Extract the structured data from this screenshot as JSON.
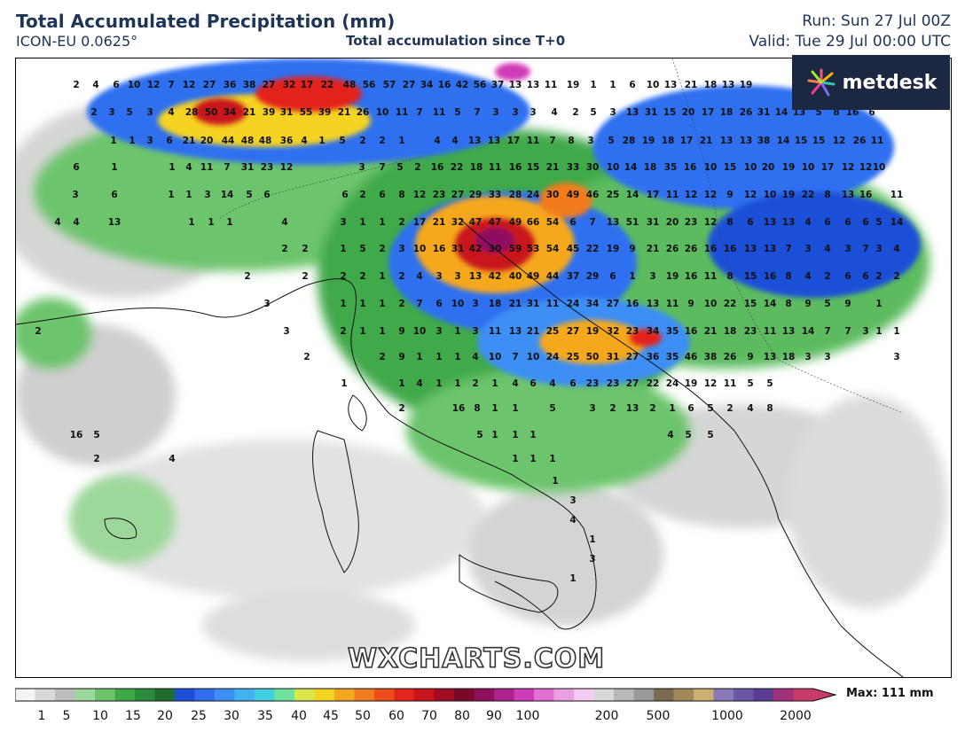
{
  "header": {
    "title": "Total Accumulated Precipitation (mm)",
    "model": "ICON-EU 0.0625°",
    "subtitle": "Total accumulation since T+0",
    "run": "Run: Sun 27 Jul 00Z",
    "valid": "Valid: Tue 29 Jul 00:00 UTC"
  },
  "logo": {
    "text": "metdesk",
    "icon": "metdesk-burst-icon"
  },
  "watermark": "WXCHARTS.COM",
  "legend": {
    "ticks": [
      "1",
      "5",
      "10",
      "15",
      "20",
      "25",
      "30",
      "35",
      "40",
      "45",
      "50",
      "60",
      "70",
      "80",
      "90",
      "100",
      "200",
      "500",
      "1000",
      "2000"
    ],
    "max_label": "Max: 111 mm",
    "colors": [
      "#f4f4f4",
      "#d9d9d9",
      "#bdbdbd",
      "#9dd89a",
      "#6cc46c",
      "#3fa94a",
      "#2a8c3b",
      "#1f6e2f",
      "#1d4fd8",
      "#2f6ff0",
      "#3c8ff5",
      "#42b3f2",
      "#3fd1e0",
      "#6fe2a0",
      "#d6e84a",
      "#f5d323",
      "#f5a81f",
      "#f27c1e",
      "#ee4d1a",
      "#e3241a",
      "#c8141c",
      "#a20c22",
      "#7a0a2a",
      "#8e1160",
      "#b0218e",
      "#d03bb7",
      "#e070d3",
      "#ea9ee3",
      "#f2c9ef",
      "#d8d8d8",
      "#b8b8b8",
      "#9a9a9a",
      "#7a6a50",
      "#a0885a",
      "#c9b070",
      "#8878b8",
      "#6a58a6",
      "#5a3e96",
      "#a0327a",
      "#c83a6a"
    ]
  },
  "map": {
    "region": "Central Mediterranean / Italy / Balkans",
    "values": [
      "2",
      "4",
      "6",
      "10",
      "12",
      "7",
      "12",
      "27",
      "36",
      "38",
      "27",
      "32",
      "17",
      "22",
      "48",
      "56",
      "57",
      "27",
      "34",
      "16",
      "42",
      "56",
      "37",
      "13",
      "13",
      "11",
      "19",
      "1",
      "1",
      "6",
      "10",
      "13",
      "21",
      "18",
      "13",
      "19",
      "2",
      "3",
      "5",
      "3",
      "4",
      "28",
      "50",
      "34",
      "21",
      "39",
      "31",
      "55",
      "39",
      "21",
      "26",
      "10",
      "11",
      "7",
      "11",
      "5",
      "7",
      "3",
      "3",
      "3",
      "4",
      "2",
      "5",
      "3",
      "13",
      "31",
      "15",
      "20",
      "17",
      "18",
      "26",
      "31",
      "14",
      "13",
      "5",
      "8",
      "16",
      "6",
      "1",
      "1",
      "3",
      "6",
      "21",
      "20",
      "44",
      "48",
      "48",
      "36",
      "4",
      "1",
      "5",
      "2",
      "2",
      "1",
      "4",
      "4",
      "13",
      "13",
      "17",
      "11",
      "7",
      "8",
      "3",
      "5",
      "28",
      "19",
      "18",
      "17",
      "21",
      "13",
      "13",
      "38",
      "14",
      "15",
      "15",
      "12",
      "26",
      "11",
      "6",
      "1",
      "1",
      "4",
      "11",
      "7",
      "31",
      "23",
      "12",
      "3",
      "7",
      "5",
      "2",
      "16",
      "22",
      "18",
      "11",
      "16",
      "15",
      "21",
      "33",
      "30",
      "10",
      "14",
      "18",
      "35",
      "16",
      "10",
      "15",
      "10",
      "20",
      "19",
      "10",
      "17",
      "12",
      "12",
      "10",
      "3",
      "6",
      "1",
      "1",
      "3",
      "14",
      "5",
      "6",
      "6",
      "2",
      "6",
      "8",
      "12",
      "23",
      "27",
      "29",
      "33",
      "28",
      "24",
      "30",
      "49",
      "46",
      "25",
      "14",
      "17",
      "11",
      "12",
      "12",
      "9",
      "12",
      "10",
      "19",
      "22",
      "8",
      "13",
      "16",
      "11",
      "4",
      "4",
      "13",
      "1",
      "1",
      "1",
      "4",
      "3",
      "1",
      "1",
      "2",
      "17",
      "21",
      "32",
      "47",
      "47",
      "49",
      "66",
      "54",
      "6",
      "7",
      "13",
      "51",
      "31",
      "20",
      "23",
      "12",
      "8",
      "6",
      "13",
      "13",
      "4",
      "6",
      "6",
      "6",
      "5",
      "14",
      "2",
      "2",
      "1",
      "5",
      "2",
      "3",
      "10",
      "16",
      "31",
      "42",
      "30",
      "59",
      "53",
      "54",
      "45",
      "22",
      "19",
      "9",
      "21",
      "26",
      "26",
      "16",
      "16",
      "13",
      "13",
      "7",
      "3",
      "4",
      "3",
      "7",
      "3",
      "4",
      "2",
      "2",
      "2",
      "2",
      "1",
      "2",
      "4",
      "3",
      "3",
      "13",
      "42",
      "40",
      "49",
      "44",
      "37",
      "29",
      "6",
      "1",
      "3",
      "19",
      "16",
      "11",
      "8",
      "15",
      "16",
      "8",
      "4",
      "2",
      "6",
      "6",
      "2",
      "2",
      "3",
      "1",
      "1",
      "1",
      "2",
      "7",
      "6",
      "10",
      "3",
      "18",
      "21",
      "31",
      "11",
      "24",
      "34",
      "27",
      "16",
      "13",
      "11",
      "9",
      "10",
      "22",
      "15",
      "14",
      "8",
      "9",
      "5",
      "9",
      "1",
      "2",
      "3",
      "2",
      "1",
      "1",
      "9",
      "10",
      "3",
      "1",
      "3",
      "11",
      "13",
      "21",
      "25",
      "27",
      "19",
      "32",
      "23",
      "34",
      "35",
      "16",
      "21",
      "18",
      "23",
      "11",
      "13",
      "14",
      "7",
      "7",
      "3",
      "1",
      "1",
      "2",
      "2",
      "9",
      "1",
      "1",
      "1",
      "4",
      "10",
      "7",
      "10",
      "24",
      "25",
      "50",
      "31",
      "27",
      "36",
      "35",
      "46",
      "38",
      "26",
      "9",
      "13",
      "18",
      "3",
      "3",
      "3",
      "1",
      "1",
      "4",
      "1",
      "1",
      "2",
      "1",
      "4",
      "6",
      "4",
      "6",
      "23",
      "23",
      "27",
      "22",
      "24",
      "19",
      "12",
      "11",
      "5",
      "5",
      "2",
      "16",
      "8",
      "1",
      "1",
      "5",
      "3",
      "2",
      "13",
      "2",
      "1",
      "6",
      "5",
      "2",
      "4",
      "8",
      "16",
      "5",
      "5",
      "1",
      "1",
      "1",
      "4",
      "5",
      "5",
      "2",
      "4",
      "1",
      "1",
      "1",
      "1",
      "3",
      "4",
      "1",
      "3",
      "1",
      "1",
      "3",
      "1"
    ]
  }
}
